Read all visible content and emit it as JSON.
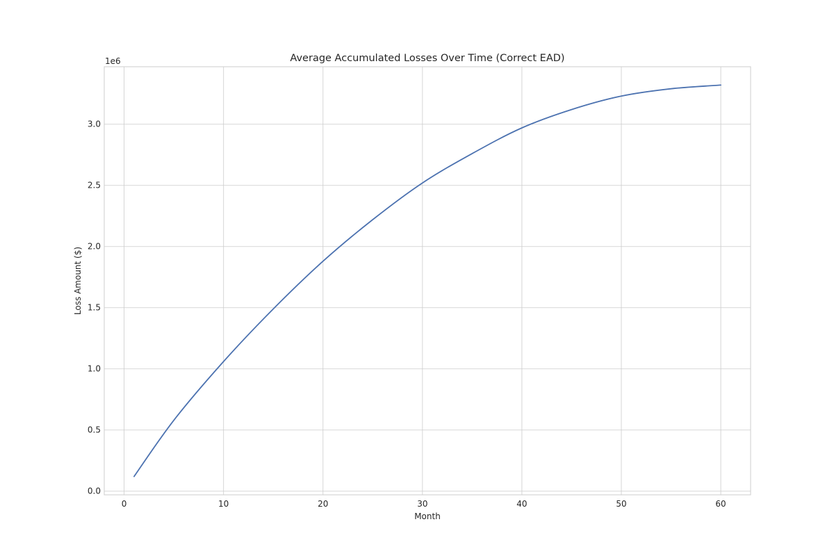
{
  "chart_data": {
    "type": "line",
    "title": "Average Accumulated Losses Over Time (Correct EAD)",
    "xlabel": "Month",
    "ylabel": "Loss Amount ($)",
    "y_offset_label": "1e6",
    "xlim": [
      -2,
      63
    ],
    "ylim": [
      -0.03,
      3.47
    ],
    "y_multiplier": 1000000,
    "xticks": [
      0,
      10,
      20,
      30,
      40,
      50,
      60
    ],
    "xtick_labels": [
      "0",
      "10",
      "20",
      "30",
      "40",
      "50",
      "60"
    ],
    "yticks": [
      0,
      0.5,
      1.0,
      1.5,
      2.0,
      2.5,
      3.0
    ],
    "ytick_labels": [
      "0.0",
      "0.5",
      "1.0",
      "1.5",
      "2.0",
      "2.5",
      "3.0"
    ],
    "grid": true,
    "color": "#4c72b0",
    "series": [
      {
        "x": [
          1,
          5,
          10,
          15,
          20,
          25,
          30,
          35,
          40,
          45,
          50,
          55,
          60
        ],
        "y": [
          0.12,
          0.58,
          1.06,
          1.49,
          1.88,
          2.22,
          2.52,
          2.76,
          2.97,
          3.12,
          3.23,
          3.29,
          3.32
        ]
      }
    ]
  }
}
